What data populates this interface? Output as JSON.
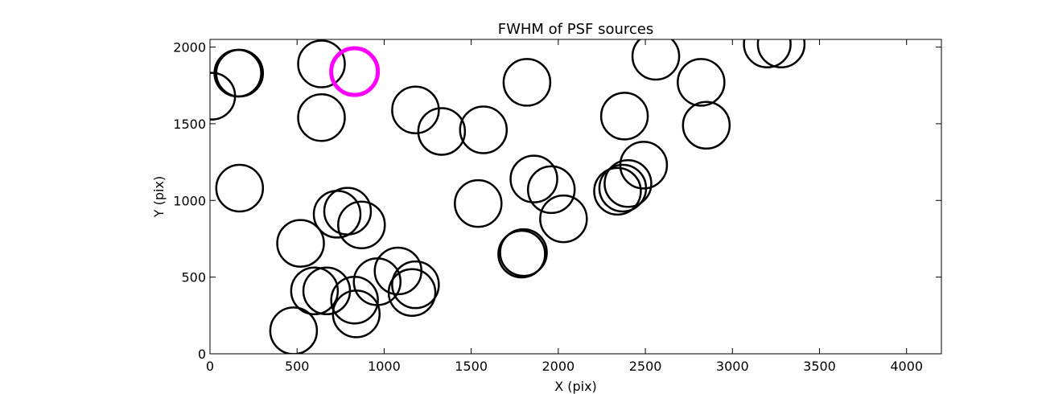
{
  "chart_data": {
    "type": "scatter",
    "title": "FWHM of PSF sources",
    "xlabel": "X (pix)",
    "ylabel": "Y (pix)",
    "xlim": [
      0,
      4200
    ],
    "ylim": [
      0,
      2050
    ],
    "xticks": [
      0,
      500,
      1000,
      1500,
      2000,
      2500,
      3000,
      3500,
      4000
    ],
    "yticks": [
      0,
      500,
      1000,
      1500,
      2000
    ],
    "xtick_labels": [
      "0",
      "500",
      "1000",
      "1500",
      "2000",
      "2500",
      "3000",
      "3500",
      "4000"
    ],
    "ytick_labels": [
      "0",
      "500",
      "1000",
      "1500",
      "2000"
    ],
    "grid": false,
    "marker": "open circle",
    "colors": {
      "default": "#000000",
      "highlight": "#ff00ff"
    },
    "points": [
      {
        "x": 10,
        "y": 1680
      },
      {
        "x": 160,
        "y": 1830
      },
      {
        "x": 170,
        "y": 1830
      },
      {
        "x": 170,
        "y": 1080
      },
      {
        "x": 640,
        "y": 1890
      },
      {
        "x": 830,
        "y": 1840,
        "highlight": true
      },
      {
        "x": 640,
        "y": 1540
      },
      {
        "x": 1180,
        "y": 1590
      },
      {
        "x": 1330,
        "y": 1450
      },
      {
        "x": 1570,
        "y": 1460
      },
      {
        "x": 1820,
        "y": 1770
      },
      {
        "x": 2380,
        "y": 1550
      },
      {
        "x": 2560,
        "y": 1940
      },
      {
        "x": 2820,
        "y": 1770
      },
      {
        "x": 2850,
        "y": 1490
      },
      {
        "x": 3200,
        "y": 2020
      },
      {
        "x": 3280,
        "y": 2020
      },
      {
        "x": 1540,
        "y": 980
      },
      {
        "x": 1860,
        "y": 1140
      },
      {
        "x": 1960,
        "y": 1070
      },
      {
        "x": 2030,
        "y": 880
      },
      {
        "x": 2490,
        "y": 1230
      },
      {
        "x": 2400,
        "y": 1110
      },
      {
        "x": 2370,
        "y": 1080
      },
      {
        "x": 2340,
        "y": 1060
      },
      {
        "x": 1800,
        "y": 660
      },
      {
        "x": 1790,
        "y": 650
      },
      {
        "x": 520,
        "y": 720
      },
      {
        "x": 730,
        "y": 910
      },
      {
        "x": 790,
        "y": 930
      },
      {
        "x": 870,
        "y": 840
      },
      {
        "x": 600,
        "y": 410
      },
      {
        "x": 670,
        "y": 410
      },
      {
        "x": 830,
        "y": 350
      },
      {
        "x": 840,
        "y": 260
      },
      {
        "x": 960,
        "y": 470
      },
      {
        "x": 1080,
        "y": 540
      },
      {
        "x": 1160,
        "y": 400
      },
      {
        "x": 1180,
        "y": 450
      },
      {
        "x": 480,
        "y": 150
      }
    ]
  }
}
